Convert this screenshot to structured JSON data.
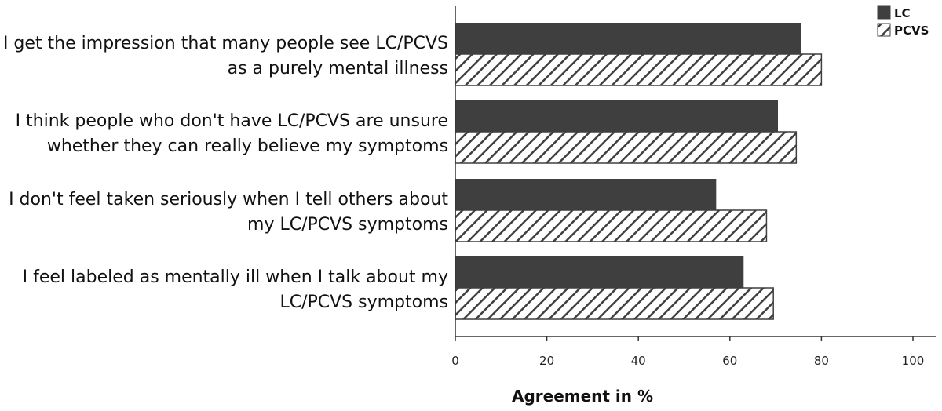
{
  "colors": {
    "lc_fill": "#3f3f3f",
    "pcvs_stroke": "#3f3f3f",
    "pcvs_background": "#ffffff",
    "axis": "#333333"
  },
  "chart_data": {
    "type": "bar",
    "orientation": "horizontal",
    "title": "",
    "xlabel": "Agreement in %",
    "ylabel": "",
    "xlim": [
      0,
      100
    ],
    "xticks": [
      0,
      20,
      40,
      60,
      80,
      100
    ],
    "grid": false,
    "legend_position": "top-right",
    "categories": [
      [
        "I get the impression that many people see LC/PCVS",
        "as a purely mental illness"
      ],
      [
        "I think people who don't have LC/PCVS are unsure",
        "whether they can really believe my symptoms"
      ],
      [
        "I don't feel taken seriously when I tell others about",
        "my LC/PCVS symptoms"
      ],
      [
        "I feel labeled as mentally ill when I talk about my",
        "LC/PCVS symptoms"
      ]
    ],
    "series": [
      {
        "name": "LC",
        "pattern": "solid",
        "values": [
          75.5,
          70.5,
          57,
          63
        ]
      },
      {
        "name": "PCVS",
        "pattern": "hatched",
        "values": [
          80,
          74.5,
          68,
          69.5
        ]
      }
    ]
  }
}
